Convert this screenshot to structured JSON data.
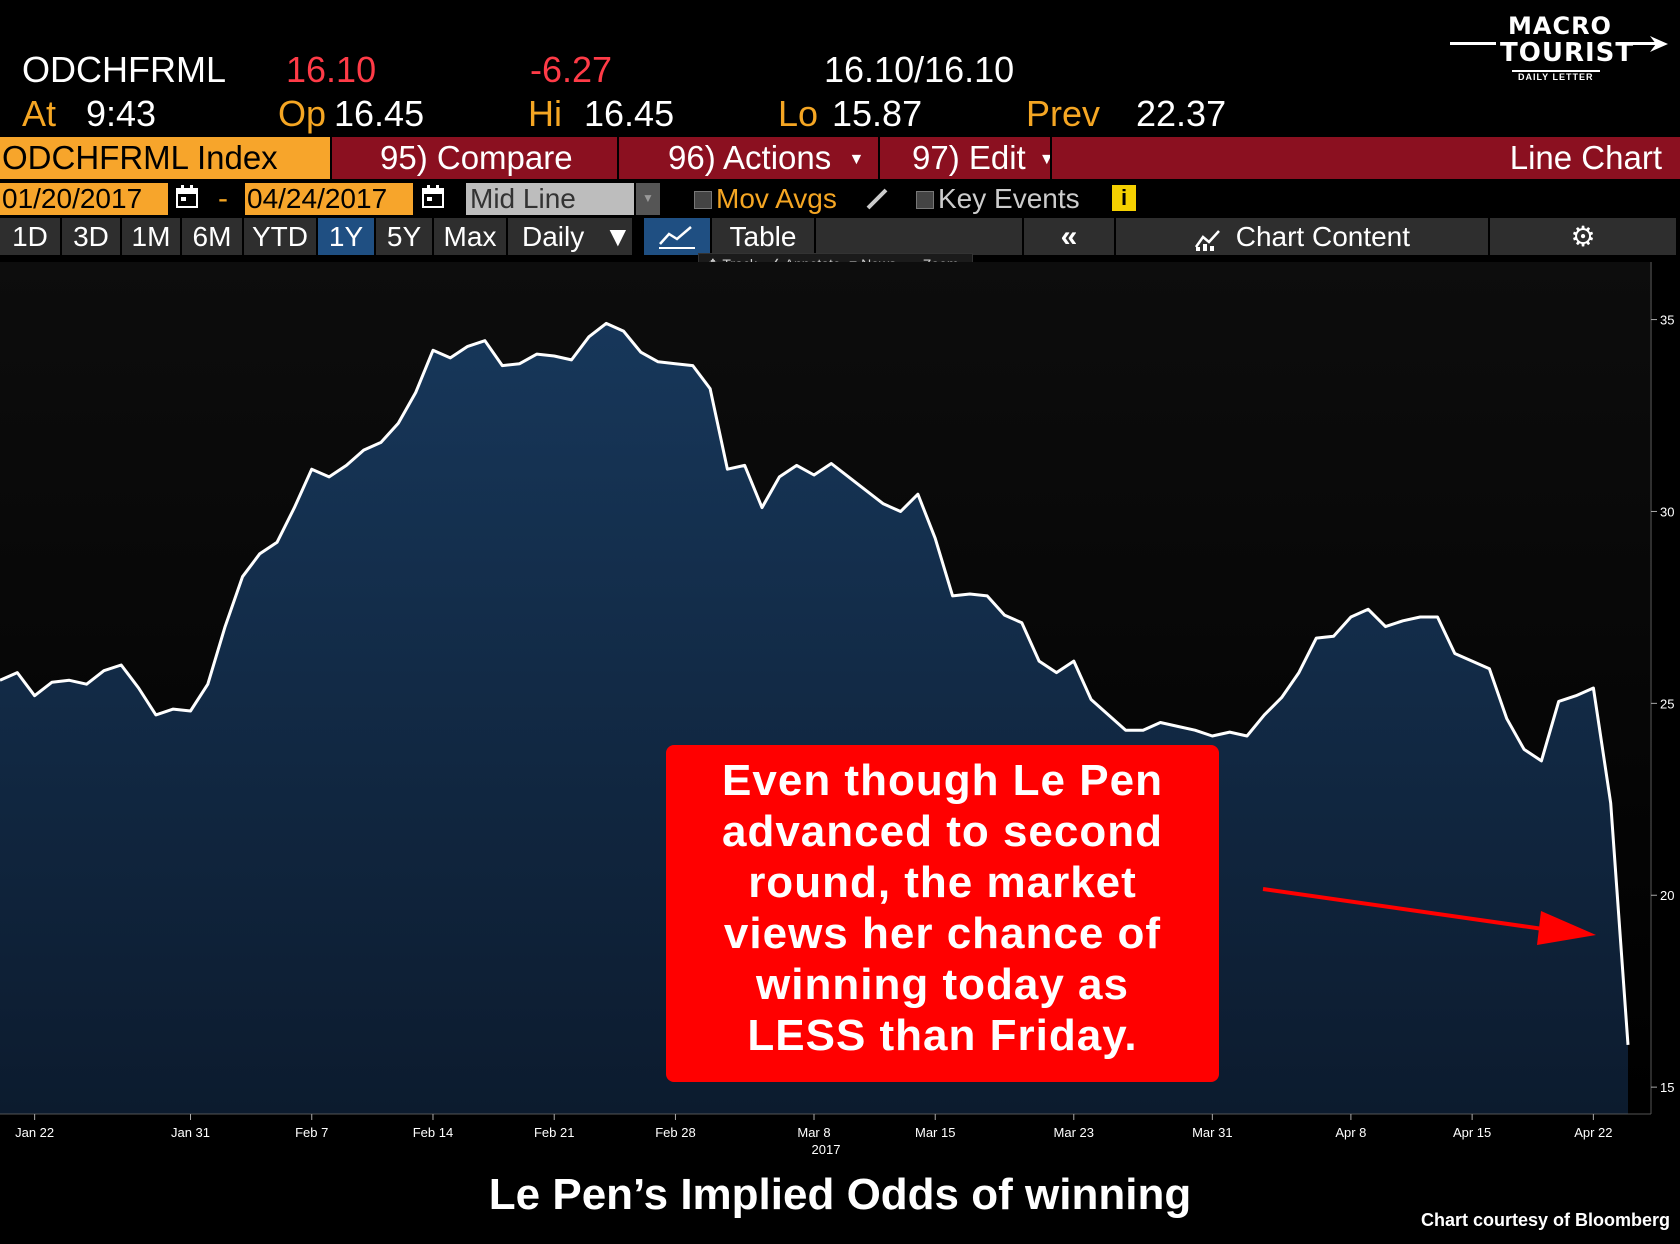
{
  "quote": {
    "ticker": "ODCHFRML",
    "last": "16.10",
    "change": "-6.27",
    "bid_ask": "16.10/16.10",
    "at_label": "At",
    "at_value": "9:43",
    "open_label": "Op",
    "open_value": "16.45",
    "high_label": "Hi",
    "high_value": "16.45",
    "low_label": "Lo",
    "low_value": "15.87",
    "prev_label": "Prev",
    "prev_value": "22.37"
  },
  "logo": {
    "line1": "MACRO",
    "line2": "TOURIST",
    "line3": "DAILY LETTER"
  },
  "command_bar": {
    "security": "ODCHFRML Index",
    "compare": "95) Compare",
    "actions": "96) Actions",
    "edit": "97) Edit",
    "chart_type": "Line Chart"
  },
  "date_row": {
    "start_date": "01/20/2017",
    "dash": "-",
    "end_date": "04/24/2017",
    "price_type": "Mid Line",
    "mov_avgs": "Mov Avgs",
    "key_events": "Key Events"
  },
  "range_row": {
    "ranges": [
      "1D",
      "3D",
      "1M",
      "6M",
      "YTD",
      "1Y",
      "5Y",
      "Max"
    ],
    "active_range": "1Y",
    "period": "Daily",
    "table": "Table",
    "chart_content": "Chart Content"
  },
  "tools": [
    "Track",
    "Annotate",
    "News",
    "Zoom"
  ],
  "icons": [
    "calendar-icon",
    "pencil-icon",
    "info-icon",
    "line-chart-icon",
    "double-chevron-left-icon",
    "chart-content-icon",
    "gear-icon"
  ],
  "colors": {
    "accent_orange": "#f7a52b",
    "command_bar": "#8b1020",
    "negative": "#ff3b47",
    "fill": "#14304f",
    "callout": "#ff0000"
  },
  "chart_data": {
    "type": "area",
    "x_tick_labels": [
      "Jan 22",
      "Jan 31",
      "Feb 7",
      "Feb 14",
      "Feb 21",
      "Feb 28",
      "Mar 8",
      "Mar 15",
      "Mar 23",
      "Mar 31",
      "Apr 8",
      "Apr 15",
      "Apr 22"
    ],
    "x_year_label": "2017",
    "y_ticks": [
      15,
      20,
      25,
      30,
      35
    ],
    "ylim": [
      14.3,
      36.5
    ],
    "x_range": [
      "2017-01-20",
      "2017-04-24"
    ],
    "grid": false,
    "values": [
      [
        "2017-01-20",
        25.6
      ],
      [
        "2017-01-21",
        25.8
      ],
      [
        "2017-01-22",
        25.2
      ],
      [
        "2017-01-23",
        25.55
      ],
      [
        "2017-01-24",
        25.6
      ],
      [
        "2017-01-25",
        25.5
      ],
      [
        "2017-01-26",
        25.85
      ],
      [
        "2017-01-27",
        26.0
      ],
      [
        "2017-01-28",
        25.4
      ],
      [
        "2017-01-29",
        24.7
      ],
      [
        "2017-01-30",
        24.85
      ],
      [
        "2017-01-31",
        24.8
      ],
      [
        "2017-02-01",
        25.5
      ],
      [
        "2017-02-02",
        27.0
      ],
      [
        "2017-02-03",
        28.3
      ],
      [
        "2017-02-04",
        28.9
      ],
      [
        "2017-02-05",
        29.2
      ],
      [
        "2017-02-06",
        30.1
      ],
      [
        "2017-02-07",
        31.1
      ],
      [
        "2017-02-08",
        30.9
      ],
      [
        "2017-02-09",
        31.2
      ],
      [
        "2017-02-10",
        31.6
      ],
      [
        "2017-02-11",
        31.8
      ],
      [
        "2017-02-12",
        32.3
      ],
      [
        "2017-02-13",
        33.1
      ],
      [
        "2017-02-14",
        34.2
      ],
      [
        "2017-02-15",
        34.0
      ],
      [
        "2017-02-16",
        34.3
      ],
      [
        "2017-02-17",
        34.45
      ],
      [
        "2017-02-18",
        33.8
      ],
      [
        "2017-02-19",
        33.85
      ],
      [
        "2017-02-20",
        34.1
      ],
      [
        "2017-02-21",
        34.05
      ],
      [
        "2017-02-22",
        33.95
      ],
      [
        "2017-02-23",
        34.55
      ],
      [
        "2017-02-24",
        34.9
      ],
      [
        "2017-02-25",
        34.7
      ],
      [
        "2017-02-26",
        34.15
      ],
      [
        "2017-02-27",
        33.9
      ],
      [
        "2017-02-28",
        33.85
      ],
      [
        "2017-03-01",
        33.8
      ],
      [
        "2017-03-02",
        33.2
      ],
      [
        "2017-03-03",
        31.1
      ],
      [
        "2017-03-04",
        31.2
      ],
      [
        "2017-03-05",
        30.1
      ],
      [
        "2017-03-06",
        30.9
      ],
      [
        "2017-03-07",
        31.2
      ],
      [
        "2017-03-08",
        30.95
      ],
      [
        "2017-03-09",
        31.25
      ],
      [
        "2017-03-10",
        30.9
      ],
      [
        "2017-03-11",
        30.55
      ],
      [
        "2017-03-12",
        30.2
      ],
      [
        "2017-03-13",
        30.0
      ],
      [
        "2017-03-14",
        30.45
      ],
      [
        "2017-03-15",
        29.3
      ],
      [
        "2017-03-16",
        27.8
      ],
      [
        "2017-03-17",
        27.85
      ],
      [
        "2017-03-18",
        27.8
      ],
      [
        "2017-03-19",
        27.3
      ],
      [
        "2017-03-20",
        27.1
      ],
      [
        "2017-03-21",
        26.1
      ],
      [
        "2017-03-22",
        25.8
      ],
      [
        "2017-03-23",
        26.1
      ],
      [
        "2017-03-24",
        25.1
      ],
      [
        "2017-03-25",
        24.7
      ],
      [
        "2017-03-26",
        24.3
      ],
      [
        "2017-03-27",
        24.3
      ],
      [
        "2017-03-28",
        24.5
      ],
      [
        "2017-03-29",
        24.4
      ],
      [
        "2017-03-30",
        24.3
      ],
      [
        "2017-03-31",
        24.15
      ],
      [
        "2017-04-01",
        24.25
      ],
      [
        "2017-04-02",
        24.15
      ],
      [
        "2017-04-03",
        24.7
      ],
      [
        "2017-04-04",
        25.15
      ],
      [
        "2017-04-05",
        25.8
      ],
      [
        "2017-04-06",
        26.7
      ],
      [
        "2017-04-07",
        26.75
      ],
      [
        "2017-04-08",
        27.25
      ],
      [
        "2017-04-09",
        27.45
      ],
      [
        "2017-04-10",
        27.0
      ],
      [
        "2017-04-11",
        27.15
      ],
      [
        "2017-04-12",
        27.25
      ],
      [
        "2017-04-13",
        27.25
      ],
      [
        "2017-04-14",
        26.3
      ],
      [
        "2017-04-15",
        26.1
      ],
      [
        "2017-04-16",
        25.9
      ],
      [
        "2017-04-17",
        24.6
      ],
      [
        "2017-04-18",
        23.8
      ],
      [
        "2017-04-19",
        23.5
      ],
      [
        "2017-04-20",
        25.05
      ],
      [
        "2017-04-21",
        25.2
      ],
      [
        "2017-04-22",
        25.4
      ],
      [
        "2017-04-23",
        22.4
      ],
      [
        "2017-04-24",
        16.1
      ]
    ]
  },
  "annotation": {
    "lines": [
      "Even though Le Pen",
      "advanced to second",
      "round, the market",
      "views her chance of",
      "winning today as",
      "LESS than Friday."
    ]
  },
  "caption": "Le Pen’s Implied Odds of winning",
  "credit": "Chart courtesy of Bloomberg"
}
